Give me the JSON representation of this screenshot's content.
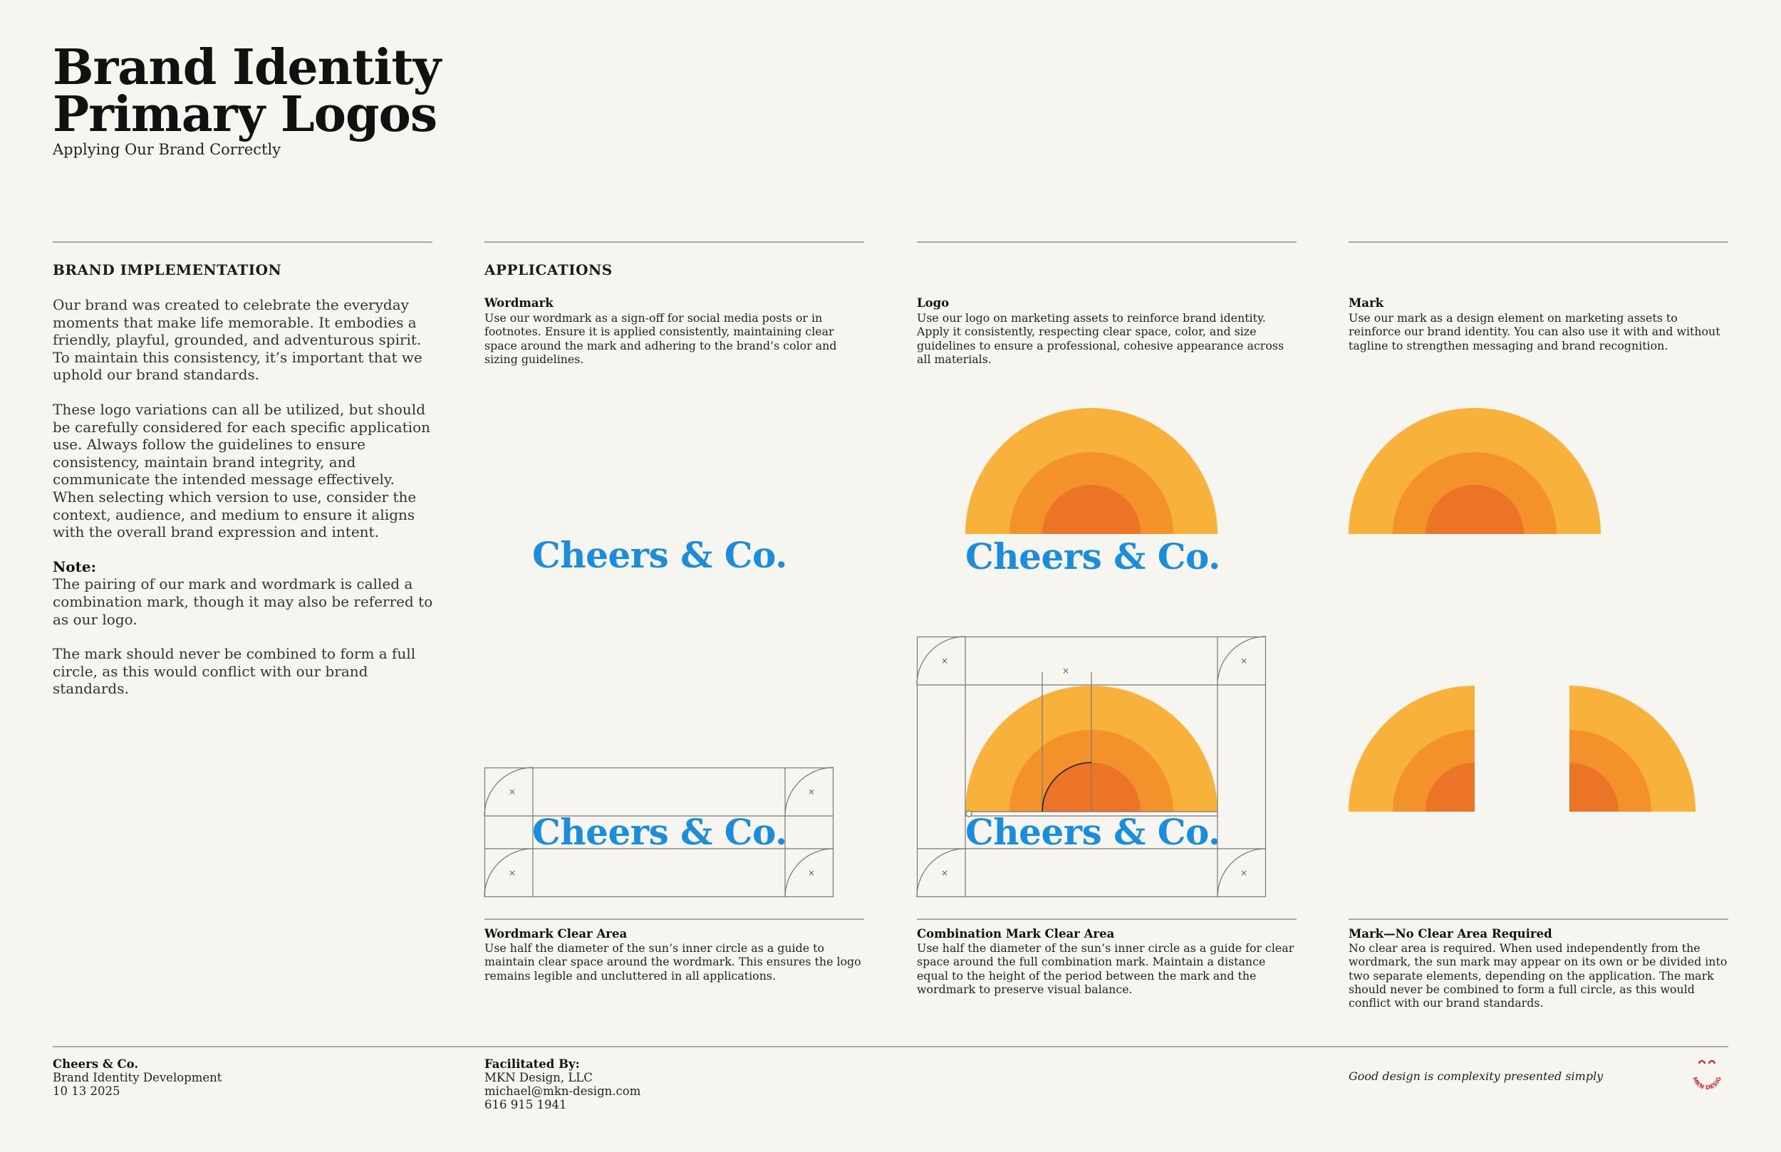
{
  "header": {
    "title_line1": "Brand Identity",
    "title_line2": "Primary Logos",
    "subtitle": "Applying Our Brand Correctly"
  },
  "implementation": {
    "heading": "BRAND IMPLEMENTATION",
    "para1": "Our brand was created to celebrate the everyday moments that make life memorable. It embodies a friendly, playful, grounded, and adventurous spirit. To maintain this consistency, it’s important that we uphold our brand standards.",
    "para2": "These logo variations can all be utilized, but should be carefully considered for each specific application use. Always follow the guidelines to ensure consistency, maintain brand integrity, and communicate the intended message effectively. When selecting which version to use, consider the context, audience, and medium to ensure it aligns with the overall brand expression and intent.",
    "note_label": "Note:",
    "note_text": "The pairing of our mark and wordmark is called a combination mark, though it may also be referred to as our logo.",
    "para4": "The mark should never be combined to form a full circle, as this would conflict with our brand standards."
  },
  "applications": {
    "heading": "APPLICATIONS",
    "wordmark": {
      "label": "Wordmark",
      "text": "Use our wordmark as a sign-off for social media posts or in footnotes. Ensure it is applied consistently, maintaining clear space around the mark and adhering to the brand’s color and sizing guidelines."
    },
    "logo": {
      "label": "Logo",
      "text": "Use our logo on marketing assets to reinforce brand identity. Apply it consistently, respecting clear space, color, and size guidelines to ensure a professional, cohesive appearance across all materials."
    },
    "mark": {
      "label": "Mark",
      "text": "Use our mark as a design element on marketing assets to reinforce our brand identity. You can also use it with and without tagline to strengthen messaging and brand recognition."
    }
  },
  "brand": {
    "wordmark_text": "Cheers & Co.",
    "clear_area_symbol": "×",
    "colors": {
      "wordmark_blue": "#1a8ddc",
      "sun_outer": "#f8b13b",
      "sun_middle": "#f3922a",
      "sun_inner": "#ec7426"
    }
  },
  "captions": {
    "wordmark_clear": {
      "label": "Wordmark Clear Area",
      "text": "Use half the diameter of the sun’s inner circle as a guide to maintain clear space around the wordmark. This ensures the logo remains legible and uncluttered in all applications."
    },
    "combo_clear": {
      "label": "Combination Mark Clear Area",
      "text": "Use half the diameter of the sun’s inner circle as a guide for clear space around the full combination mark. Maintain a distance equal to the height of the period between the mark and the wordmark to preserve visual balance."
    },
    "mark_no_clear": {
      "label": "Mark—No Clear Area Required",
      "text": "No clear area is required. When used independently from the wordmark, the sun mark may appear on its own or be divided into two separate elements, depending on the application. The mark should never be combined to form a full circle, as this would conflict with our brand standards."
    }
  },
  "footer": {
    "client_name": "Cheers & Co.",
    "client_project": "Brand Identity Development",
    "client_date": "10 13 2025",
    "facilitated_label": "Facilitated By:",
    "agency": "MKN Design, LLC",
    "email": "michael@mkn-design.com",
    "phone": "616 915 1941",
    "tagline": "Good design is complexity presented simply",
    "badge_text": "MKN DESIGN"
  }
}
